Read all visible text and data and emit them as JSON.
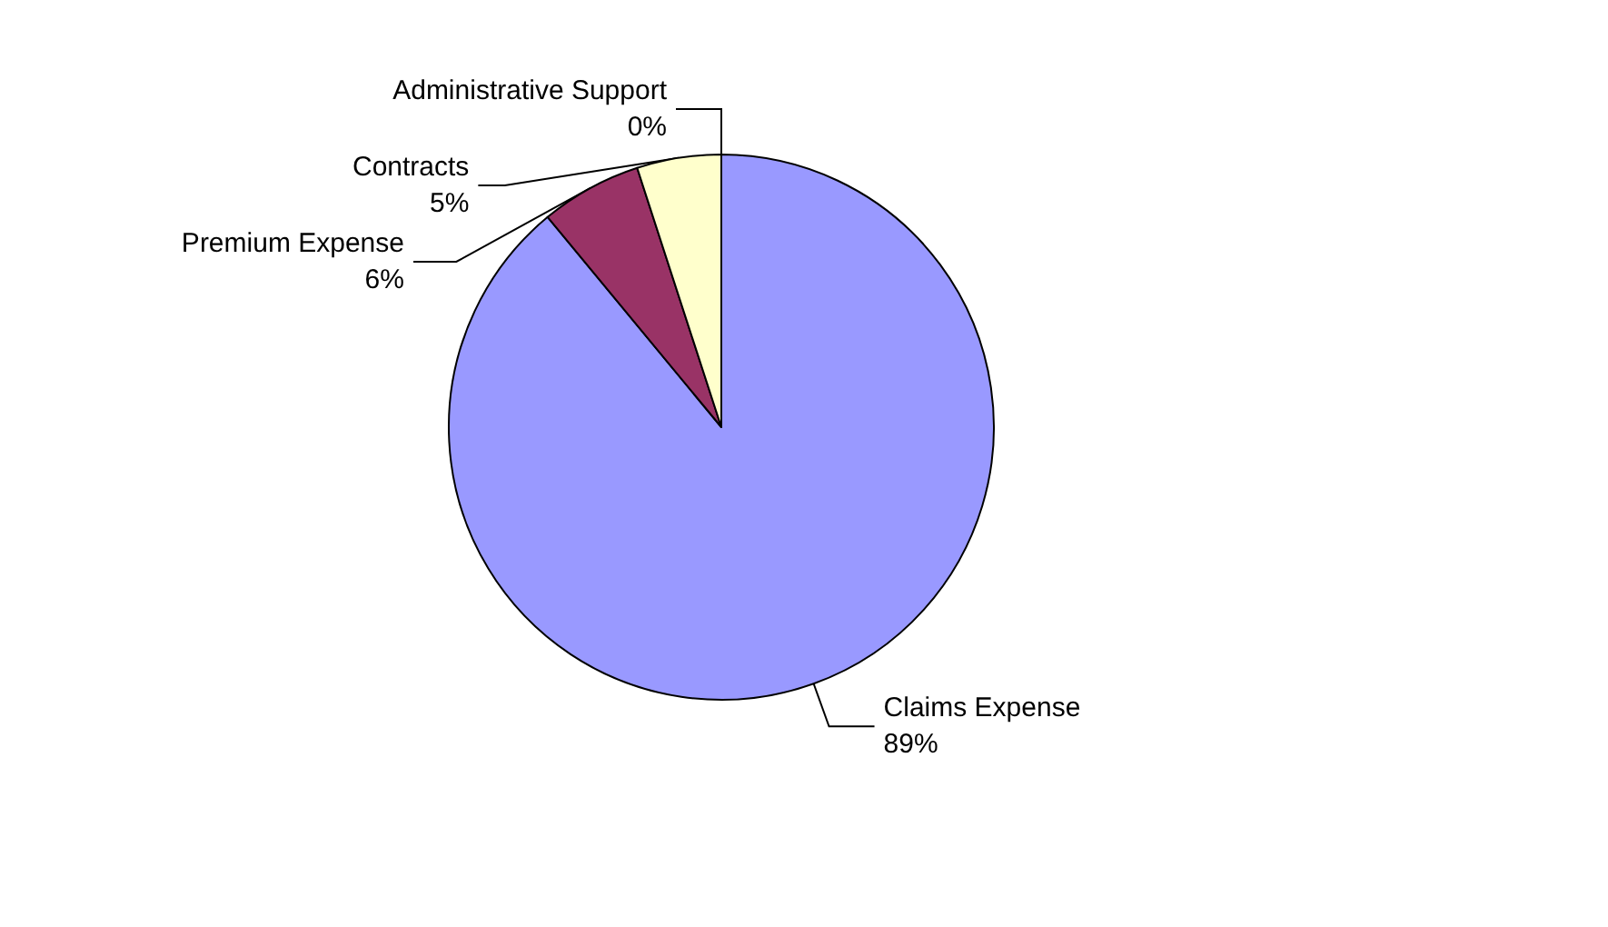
{
  "chart_data": {
    "type": "pie",
    "categories": [
      "Claims Expense",
      "Premium Expense",
      "Contracts",
      "Administrative Support"
    ],
    "values": [
      89,
      6,
      5,
      0
    ],
    "colors": [
      "#9999ff",
      "#993366",
      "#ffffcc",
      "#ccffff"
    ],
    "value_labels": [
      "89%",
      "6%",
      "5%",
      "0%"
    ],
    "legend": false
  }
}
